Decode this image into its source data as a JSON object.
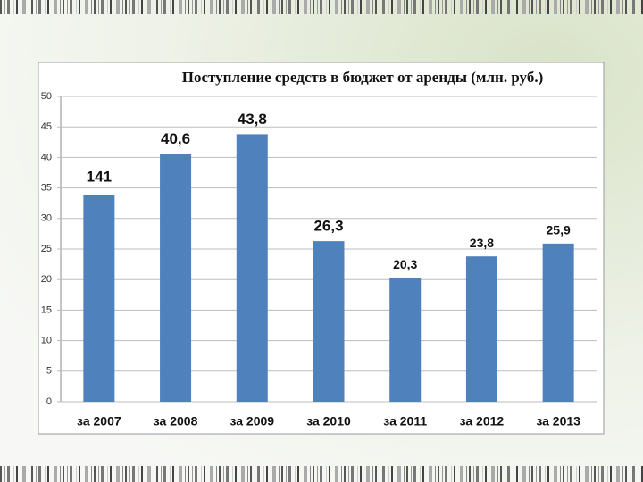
{
  "chart_data": {
    "type": "bar",
    "title": "Поступление средств в бюджет от аренды (млн. руб.)",
    "categories": [
      "за 2007",
      "за 2008",
      "за 2009",
      "за 2010",
      "за 2011",
      "за 2012",
      "за 2013"
    ],
    "values": [
      33.9,
      40.6,
      43.8,
      26.3,
      20.3,
      23.8,
      25.9
    ],
    "value_labels": [
      null,
      "40,6",
      "43,8",
      "26,3",
      "20,3",
      "23,8",
      "25,9"
    ],
    "annotation": "141",
    "color": "#4f81bd",
    "ylim": [
      0,
      50
    ],
    "yticks": [
      0,
      5,
      10,
      15,
      20,
      25,
      30,
      35,
      40,
      45,
      50
    ],
    "grid": true
  }
}
